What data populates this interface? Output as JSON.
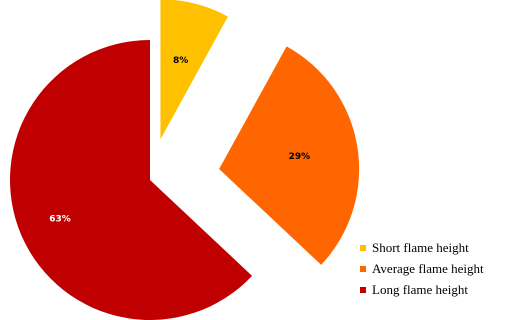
{
  "chart_data": {
    "type": "pie",
    "exploded": true,
    "slices": [
      {
        "name": "Short flame height",
        "value": 8,
        "label": "8%",
        "color": "#FFC000"
      },
      {
        "name": "Average flame height",
        "value": 29,
        "label": "29%",
        "color": "#FF6600"
      },
      {
        "name": "Long flame height",
        "value": 63,
        "label": "63%",
        "color": "#C00000"
      }
    ],
    "legend_position": "bottom-right",
    "label_colors": {
      "Short flame height": "#000000",
      "Average flame height": "#000000",
      "Long flame height": "#ffffff"
    }
  }
}
